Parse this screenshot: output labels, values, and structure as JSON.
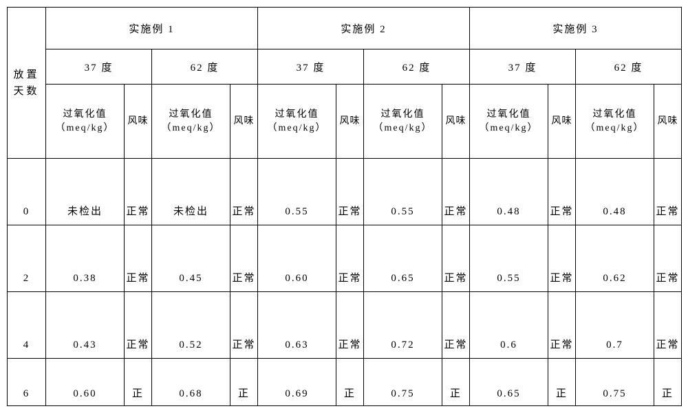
{
  "header": {
    "rowLabel": "放置天数",
    "examples": [
      "实施例 1",
      "实施例 2",
      "实施例 3"
    ],
    "temps": [
      "37 度",
      "62 度"
    ],
    "colPeroxide": "过氧化值（meq/kg）",
    "colFlavor": "风味"
  },
  "rows": [
    {
      "day": "0",
      "cells": [
        "未检出",
        "正常",
        "未检出",
        "正常",
        "0.55",
        "正常",
        "0.55",
        "正常",
        "0.48",
        "正常",
        "0.48",
        "正常"
      ]
    },
    {
      "day": "2",
      "cells": [
        "0.38",
        "正常",
        "0.45",
        "正常",
        "0.60",
        "正常",
        "0.65",
        "正常",
        "0.55",
        "正常",
        "0.62",
        "正常"
      ]
    },
    {
      "day": "4",
      "cells": [
        "0.43",
        "正常",
        "0.52",
        "正常",
        "0.63",
        "正常",
        "0.72",
        "正常",
        "0.6",
        "正常",
        "0.7",
        "正常"
      ]
    },
    {
      "day": "6",
      "cells": [
        "0.60",
        "正",
        "0.68",
        "正",
        "0.69",
        "正",
        "0.75",
        "正",
        "0.65",
        "正",
        "0.75",
        "正"
      ]
    }
  ],
  "style": {
    "fontFamily": "SimSun",
    "borderColor": "#000000",
    "background": "#ffffff",
    "fontSizeHeader": 15,
    "fontSizeCell": 15
  }
}
